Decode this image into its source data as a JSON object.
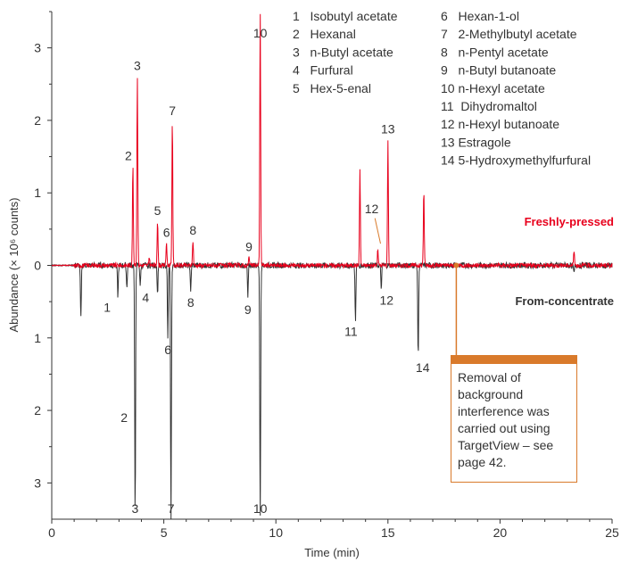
{
  "chart_data": {
    "type": "line",
    "title": "",
    "xlabel": "Time (min)",
    "ylabel": "Abundance (× 10⁶ counts)",
    "xlim": [
      0,
      25
    ],
    "ylim": [
      -3.5,
      3.5
    ],
    "x_ticks": [
      "0",
      "5",
      "10",
      "15",
      "20",
      "25"
    ],
    "y_ticks": [
      {
        "value": 3,
        "label": "3"
      },
      {
        "value": 2,
        "label": "2"
      },
      {
        "value": 1,
        "label": "1"
      },
      {
        "value": 0,
        "label": "0"
      },
      {
        "value": -1,
        "label": "1"
      },
      {
        "value": -2,
        "label": "2"
      },
      {
        "value": -3,
        "label": "3"
      }
    ],
    "series": [
      {
        "name": "Freshly-pressed",
        "color": "#e8001c",
        "direction": "up",
        "peaks": [
          {
            "x": 3.62,
            "y": 1.38,
            "label": "2"
          },
          {
            "x": 3.82,
            "y": 2.62,
            "label": "3"
          },
          {
            "x": 4.35,
            "y": 0.12,
            "label": ""
          },
          {
            "x": 4.72,
            "y": 0.62,
            "label": "5"
          },
          {
            "x": 5.12,
            "y": 0.32,
            "label": "6"
          },
          {
            "x": 5.38,
            "y": 2.0,
            "label": "7"
          },
          {
            "x": 6.3,
            "y": 0.35,
            "label": "8"
          },
          {
            "x": 8.8,
            "y": 0.12,
            "label": "9"
          },
          {
            "x": 9.3,
            "y": 3.5,
            "label": "10"
          },
          {
            "x": 13.75,
            "y": 1.35,
            "label": ""
          },
          {
            "x": 14.55,
            "y": 0.22,
            "label": "12"
          },
          {
            "x": 15.0,
            "y": 1.75,
            "label": "13"
          },
          {
            "x": 16.6,
            "y": 1.05,
            "label": ""
          },
          {
            "x": 23.3,
            "y": 0.22,
            "label": ""
          }
        ]
      },
      {
        "name": "From-concentrate",
        "color": "#333333",
        "direction": "down",
        "peaks": [
          {
            "x": 1.3,
            "y": 0.75,
            "label": ""
          },
          {
            "x": 2.95,
            "y": 0.42,
            "label": "1"
          },
          {
            "x": 3.35,
            "y": 0.3,
            "label": ""
          },
          {
            "x": 3.72,
            "y": 3.5,
            "label": "3"
          },
          {
            "x": 3.95,
            "y": 0.28,
            "label": "4"
          },
          {
            "x": 4.72,
            "y": 0.4,
            "label": ""
          },
          {
            "x": 5.18,
            "y": 1.0,
            "label": "6"
          },
          {
            "x": 5.32,
            "y": 3.5,
            "label": "7"
          },
          {
            "x": 6.2,
            "y": 0.35,
            "label": "8"
          },
          {
            "x": 8.75,
            "y": 0.45,
            "label": "9"
          },
          {
            "x": 9.3,
            "y": 3.5,
            "label": "10"
          },
          {
            "x": 13.55,
            "y": 0.75,
            "label": "11"
          },
          {
            "x": 14.7,
            "y": 0.32,
            "label": "12"
          },
          {
            "x": 16.35,
            "y": 1.25,
            "label": "14"
          },
          {
            "x": 23.3,
            "y": 0.12,
            "label": ""
          }
        ],
        "extra_labels": [
          {
            "x": 3.55,
            "y": 2.1,
            "label": "2"
          }
        ]
      }
    ],
    "legend": [
      "1   Isobutyl acetate",
      "2   Hexanal",
      "3   n-Butyl acetate",
      "4   Furfural",
      "5   Hex-5-enal",
      "6   Hexan-1-ol",
      "7   2-Methylbutyl acetate",
      "8   n-Pentyl acetate",
      "9   n-Butyl butanoate",
      "10 n-Hexyl acetate",
      "11  Dihydromaltol",
      "12 n-Hexyl butanoate",
      "13 Estragole",
      "14 5-Hydroxymethylfurfural"
    ],
    "legend_placement": "top-right",
    "annotation": {
      "text_lines": [
        "Removal of",
        "background",
        "interference was",
        "carried out using",
        "TargetView – see",
        "page 42."
      ],
      "marker_x": 18.05
    },
    "grid": false
  },
  "series_labels": {
    "fresh": "Freshly-pressed",
    "conc": "From-concentrate"
  }
}
